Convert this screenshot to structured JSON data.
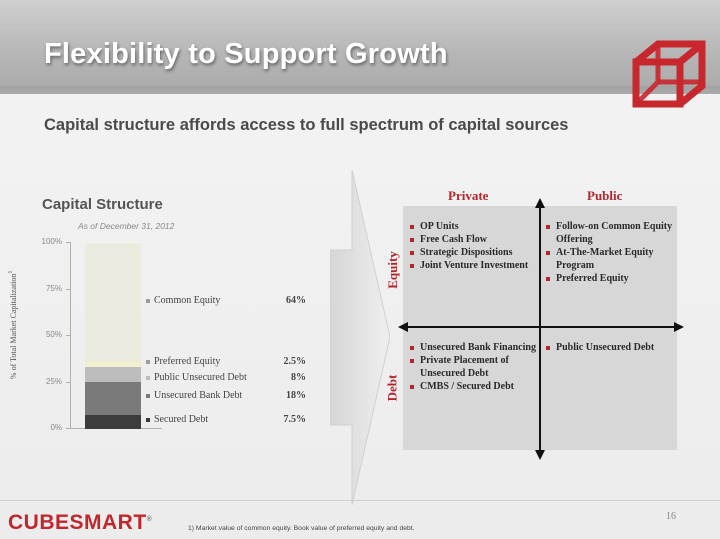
{
  "header": {
    "title": "Flexibility to Support Growth",
    "subtitle": "Capital structure affords access to full spectrum of capital sources"
  },
  "capital_structure": {
    "title": "Capital Structure",
    "as_of": "As of December 31, 2012",
    "y_axis_label": "% of Total Market Capitalization",
    "y_axis_footnote": "1",
    "ticks": [
      "100%",
      "75%",
      "50%",
      "25%",
      "0%"
    ],
    "segments": [
      {
        "name": "Common Equity",
        "value_label": "64%",
        "value": 64,
        "color": "#ebebdf"
      },
      {
        "name": "Preferred Equity",
        "value_label": "2.5%",
        "value": 2.5,
        "color": "#f2f0cf"
      },
      {
        "name": "Public Unsecured Debt",
        "value_label": "8%",
        "value": 8,
        "color": "#bdbdbd"
      },
      {
        "name": "Unsecured Bank Debt",
        "value_label": "18%",
        "value": 18,
        "color": "#7a7a7a"
      },
      {
        "name": "Secured Debt",
        "value_label": "7.5%",
        "value": 7.5,
        "color": "#3c3c3c"
      }
    ]
  },
  "matrix": {
    "columns": [
      "Private",
      "Public"
    ],
    "rows": [
      "Equity",
      "Debt"
    ],
    "equity_private": [
      "OP Units",
      "Free Cash Flow",
      "Strategic Dispositions",
      "Joint Venture Investment"
    ],
    "equity_public": [
      "Follow-on Common Equity Offering",
      "At-The-Market Equity Program",
      "Preferred Equity"
    ],
    "debt_private": [
      "Unsecured Bank Financing",
      "Private Placement of Unsecured Debt",
      "CMBS / Secured Debt"
    ],
    "debt_public": [
      "Public Unsecured Debt"
    ]
  },
  "footer": {
    "brand": "CUBESMART",
    "trademark": "®",
    "footnote": "1)     Market value of common equity.  Book value of preferred equity and debt.",
    "page_number": "16"
  },
  "colors": {
    "accent_red": "#b3262d",
    "brand_red": "#c0272d"
  }
}
